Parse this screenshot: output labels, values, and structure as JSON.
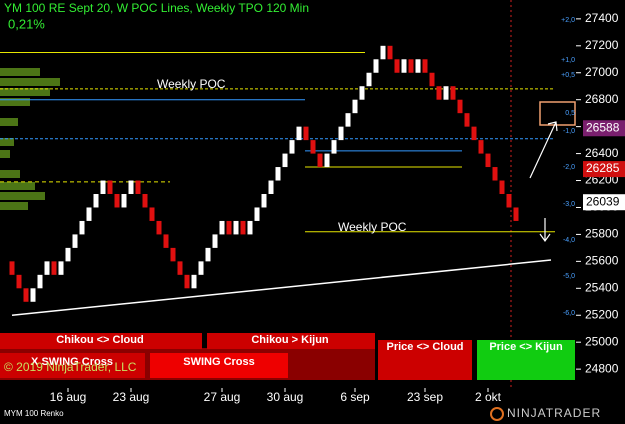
{
  "chart_data": {
    "type": "renko",
    "title": "YM 100 RE Sept 20, W POC Lines, Weekly TPO 120 Min",
    "subtitle": "0,21%",
    "brick_size": 100,
    "up_color": "#ffffff",
    "down_color": "#e01010",
    "values": [
      25500,
      25400,
      25300,
      25400,
      25500,
      25600,
      25500,
      25600,
      25700,
      25800,
      25900,
      26000,
      26100,
      26200,
      26100,
      26000,
      26100,
      26200,
      26100,
      26000,
      25900,
      25800,
      25700,
      25600,
      25500,
      25400,
      25500,
      25600,
      25700,
      25800,
      25900,
      25800,
      25900,
      25800,
      25900,
      26000,
      26100,
      26200,
      26300,
      26400,
      26500,
      26600,
      26500,
      26400,
      26300,
      26400,
      26500,
      26600,
      26700,
      26800,
      26900,
      27000,
      27100,
      27200,
      27100,
      27000,
      27100,
      27000,
      27100,
      27000,
      26900,
      26800,
      26900,
      26800,
      26700,
      26600,
      26500,
      26400,
      26300,
      26200,
      26100,
      26000,
      25900
    ],
    "ylim": [
      24660,
      27540
    ],
    "yticks": [
      24800,
      25000,
      25200,
      25400,
      25600,
      25800,
      26000,
      26200,
      26400,
      26600,
      26800,
      27000,
      27200,
      27400
    ],
    "xticks": [
      {
        "value": 8,
        "label": "16 aug"
      },
      {
        "value": 17,
        "label": "23 aug"
      },
      {
        "value": 30,
        "label": "27 aug"
      },
      {
        "value": 39,
        "label": "30 aug"
      },
      {
        "value": 49,
        "label": "6 sep"
      },
      {
        "value": 59,
        "label": "23 sep"
      },
      {
        "value": 68,
        "label": "2 okt"
      }
    ],
    "levels": [
      {
        "value": 27150,
        "color": "#e6e600"
      },
      {
        "value": 26880,
        "color": "#e6e600",
        "label": "Weekly POC"
      },
      {
        "value": 26800,
        "color": "#3399ff"
      },
      {
        "value": 26510,
        "color": "#3399ff"
      },
      {
        "value": 26420,
        "color": "#3399ff"
      },
      {
        "value": 26300,
        "color": "#e6e600"
      },
      {
        "value": 26190,
        "color": "#e6e600"
      },
      {
        "value": 25820,
        "color": "#e6e600",
        "label": "Weekly POC"
      }
    ],
    "trendline": {
      "x": [
        0,
        77
      ],
      "y": [
        25200,
        25610
      ],
      "color": "#ffffff"
    },
    "price_markers": [
      {
        "value": 26588,
        "color": "#7a1f6e",
        "text_color": "#ffffff"
      },
      {
        "value": 26285,
        "color": "#d01010",
        "text_color": "#ffffff"
      },
      {
        "value": 26039,
        "color": "#ffffff",
        "text_color": "#000000"
      }
    ],
    "scale_labels": [
      "+2,0",
      "+1,0",
      "+0,5",
      "0,5",
      "-1,0",
      "-2,0",
      "-3,0",
      "-4,0",
      "-5,0",
      "-6,0"
    ],
    "signals": [
      "Chikou <> Cloud",
      "Chikou > Kijun",
      "X SWING Cross",
      "SWING Cross",
      "Price <> Cloud",
      "Price <> Kijun"
    ],
    "copyright": "© 2019 NinjaTrader, LLC",
    "instrument": "MYM 100 Renko",
    "brand": "NINJATRADER"
  }
}
